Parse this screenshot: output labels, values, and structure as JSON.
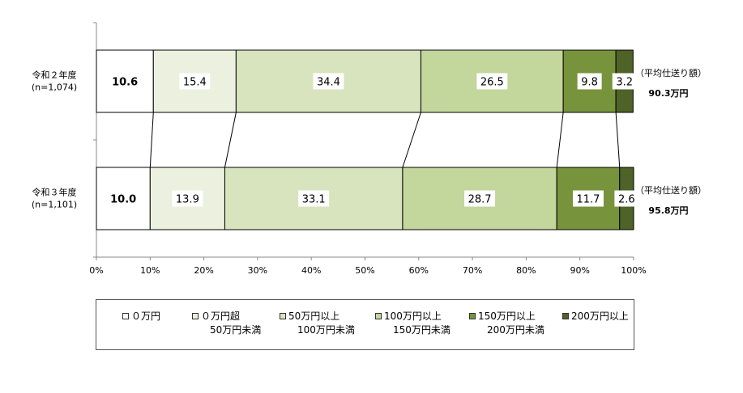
{
  "chart_data": {
    "type": "bar",
    "orientation": "horizontal-stacked-100",
    "categories": [
      {
        "name": "令和２年度",
        "n": "(n=1,074)"
      },
      {
        "name": "令和３年度",
        "n": "(n=1,101)"
      }
    ],
    "series": [
      {
        "name": "０万円",
        "name_line2": "",
        "color": "#ffffff",
        "values": [
          10.6,
          10.0
        ],
        "labels": [
          "10.6",
          "10.0"
        ],
        "bold": true
      },
      {
        "name": "０万円超",
        "name_line2": "50万円未満",
        "color": "#ebf1de",
        "values": [
          15.4,
          13.9
        ],
        "labels": [
          "15.4",
          "13.9"
        ]
      },
      {
        "name": "50万円以上",
        "name_line2": "100万円未満",
        "color": "#d7e4bd",
        "values": [
          34.4,
          33.1
        ],
        "labels": [
          "34.4",
          "33.1"
        ]
      },
      {
        "name": "100万円以上",
        "name_line2": "150万円未満",
        "color": "#c3d69b",
        "values": [
          26.5,
          28.7
        ],
        "labels": [
          "26.5",
          "28.7"
        ]
      },
      {
        "name": "150万円以上",
        "name_line2": "200万円未満",
        "color": "#77933c",
        "values": [
          9.8,
          11.7
        ],
        "labels": [
          "9.8",
          "11.7"
        ]
      },
      {
        "name": "200万円以上",
        "name_line2": "",
        "color": "#4f6228",
        "values": [
          3.2,
          2.6
        ],
        "labels": [
          "3.2",
          "2.6"
        ]
      }
    ],
    "annotations": [
      {
        "label": "（平均仕送り額）",
        "value": "90.3万円"
      },
      {
        "label": "（平均仕送り額）",
        "value": "95.8万円"
      }
    ],
    "x_ticks": [
      "0%",
      "10%",
      "20%",
      "30%",
      "40%",
      "50%",
      "60%",
      "70%",
      "80%",
      "90%",
      "100%"
    ],
    "xlim": [
      0,
      100
    ],
    "legend_position": "bottom",
    "grid": false
  }
}
